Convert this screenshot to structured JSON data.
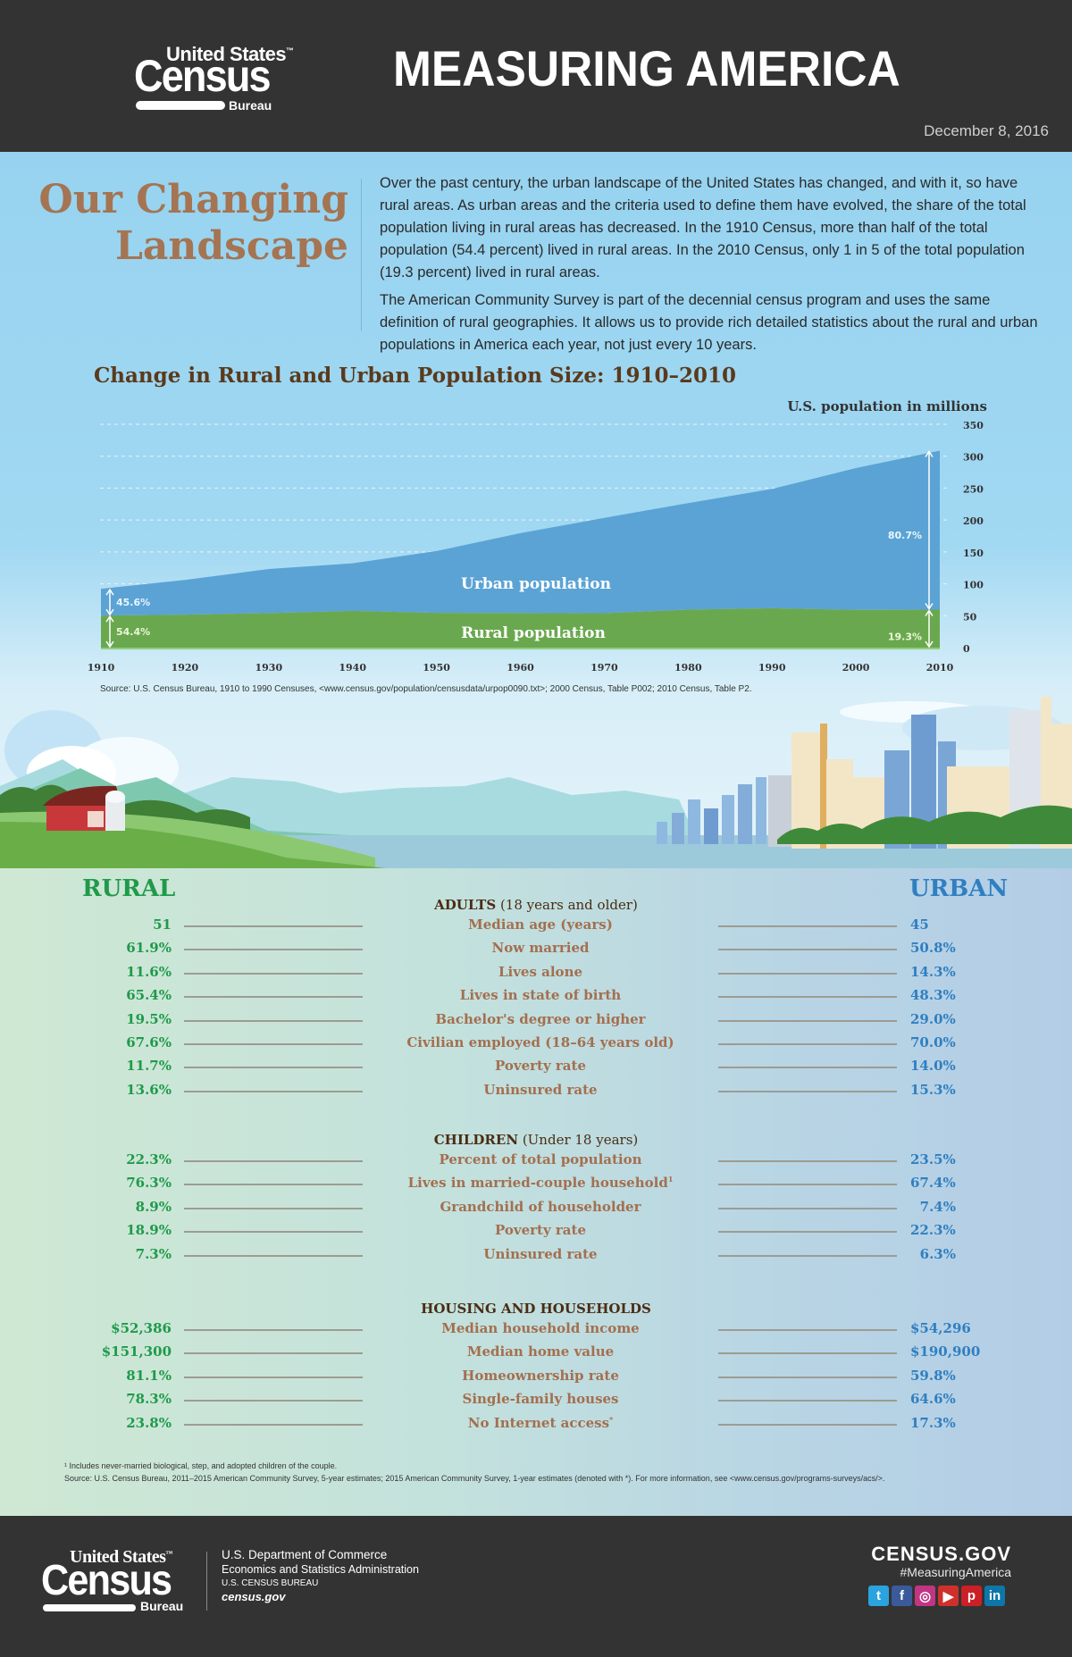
{
  "header": {
    "logo": {
      "line1": "United States",
      "line2": "Census",
      "line3": "Bureau",
      "tm": "™"
    },
    "title": "MEASURING AMERICA",
    "date": "December 8, 2016"
  },
  "intro": {
    "title_line1": "Our Changing",
    "title_line2": "Landscape",
    "paragraph1": "Over the past century, the urban landscape of the United States has changed, and with it, so have rural areas. As urban areas and the criteria used to define them have evolved, the share of the total population living in rural areas has decreased. In the 1910 Census, more than half of the total population (54.4 percent) lived in rural areas. In the 2010 Census, only 1 in 5 of the total population (19.3 percent) lived in rural areas.",
    "paragraph2": "The American Community Survey is part of the decennial census program and uses the same definition of rural geographies. It allows us to provide rich detailed statistics about the rural and urban populations in America each year, not just every 10 years."
  },
  "chart_data": {
    "type": "area",
    "title": "Change in Rural and Urban Population Size: 1910–2010",
    "ylabel": "U.S. population in millions",
    "xlabel": "",
    "x": [
      1910,
      1920,
      1930,
      1940,
      1950,
      1960,
      1970,
      1980,
      1990,
      2000,
      2010
    ],
    "xticks": [
      "1910",
      "1920",
      "1930",
      "1940",
      "1950",
      "1960",
      "1970",
      "1980",
      "1990",
      "2000",
      "2010"
    ],
    "yticks": [
      "0",
      "50",
      "100",
      "150",
      "200",
      "250",
      "300",
      "350"
    ],
    "ylim": [
      0,
      350
    ],
    "xlim": [
      1910,
      2010
    ],
    "stacked": true,
    "grid": true,
    "series": [
      {
        "name": "Rural population",
        "color": "#6aa84f",
        "values": [
          50.2,
          51.6,
          54.0,
          57.5,
          54.5,
          54.1,
          53.9,
          59.5,
          61.7,
          59.1,
          59.5
        ]
      },
      {
        "name": "Urban population",
        "color": "#5ba3d4",
        "values": [
          42.0,
          54.4,
          69.2,
          74.7,
          96.8,
          125.2,
          149.4,
          167.0,
          187.0,
          222.3,
          249.2
        ]
      }
    ],
    "annotations": [
      {
        "text": "45.6%",
        "series": "Urban population",
        "x": 1910
      },
      {
        "text": "54.4%",
        "series": "Rural population",
        "x": 1910
      },
      {
        "text": "80.7%",
        "series": "Urban population",
        "x": 2010
      },
      {
        "text": "19.3%",
        "series": "Rural population",
        "x": 2010
      }
    ],
    "source": "Source: U.S. Census Bureau, 1910 to 1990 Censuses, <www.census.gov/population/censusdata/urpop0090.txt>; 2000 Census, Table P002; 2010 Census, Table P2."
  },
  "comparison": {
    "rural_heading": "RURAL",
    "urban_heading": "URBAN",
    "groups": [
      {
        "title": "ADULTS",
        "subtitle": "(18 years and older)",
        "rows": [
          {
            "label": "Median age (years)",
            "rural": "51",
            "urban": "45"
          },
          {
            "label": "Now married",
            "rural": "61.9%",
            "urban": "50.8%"
          },
          {
            "label": "Lives alone",
            "rural": "11.6%",
            "urban": "14.3%"
          },
          {
            "label": "Lives in state of birth",
            "rural": "65.4%",
            "urban": "48.3%"
          },
          {
            "label": "Bachelor's degree or higher",
            "rural": "19.5%",
            "urban": "29.0%"
          },
          {
            "label": "Civilian employed (18–64 years old)",
            "rural": "67.6%",
            "urban": "70.0%"
          },
          {
            "label": "Poverty rate",
            "rural": "11.7%",
            "urban": "14.0%"
          },
          {
            "label": "Uninsured rate",
            "rural": "13.6%",
            "urban": "15.3%"
          }
        ]
      },
      {
        "title": "CHILDREN",
        "subtitle": "(Under 18 years)",
        "rows": [
          {
            "label": "Percent of total population",
            "rural": "22.3%",
            "urban": "23.5%"
          },
          {
            "label": "Lives in married-couple household",
            "sup": "1",
            "rural": "76.3%",
            "urban": "67.4%"
          },
          {
            "label": "Grandchild of householder",
            "rural": "8.9%",
            "urban": "7.4%"
          },
          {
            "label": "Poverty rate",
            "rural": "18.9%",
            "urban": "22.3%"
          },
          {
            "label": "Uninsured rate",
            "rural": "7.3%",
            "urban": "6.3%"
          }
        ]
      },
      {
        "title": "HOUSING AND HOUSEHOLDS",
        "subtitle": "",
        "rows": [
          {
            "label": "Median household income",
            "rural": "$52,386",
            "urban": "$54,296"
          },
          {
            "label": "Median home value",
            "rural": "$151,300",
            "urban": "$190,900"
          },
          {
            "label": "Homeownership rate",
            "rural": "81.1%",
            "urban": "59.8%"
          },
          {
            "label": "Single-family houses",
            "rural": "78.3%",
            "urban": "64.6%"
          },
          {
            "label": "No Internet access",
            "sup": "*",
            "rural": "23.8%",
            "urban": "17.3%"
          }
        ]
      }
    ],
    "footnote1": "¹ Includes never-married biological, step, and adopted children of the couple.",
    "footnote2": "Source: U.S. Census Bureau, 2011–2015 American Community Survey, 5-year estimates; 2015 American Community Survey, 1-year estimates (denoted with *). For more information, see <www.census.gov/programs-surveys/acs/>."
  },
  "footer": {
    "logo": {
      "line1": "United States",
      "line2": "Census",
      "line3": "Bureau",
      "tm": "™"
    },
    "dept_line1": "U.S. Department of Commerce",
    "dept_line2": "Economics and Statistics Administration",
    "dept_line3": "U.S. CENSUS BUREAU",
    "dept_line4": "census.gov",
    "site": "CENSUS.GOV",
    "hashtag": "#MeasuringAmerica",
    "social": [
      {
        "name": "twitter-icon",
        "glyph": "t",
        "color": "#2aa3df"
      },
      {
        "name": "facebook-icon",
        "glyph": "f",
        "color": "#3b5a9a"
      },
      {
        "name": "instagram-icon",
        "glyph": "◎",
        "color": "#c13584"
      },
      {
        "name": "youtube-icon",
        "glyph": "▶",
        "color": "#d0302b"
      },
      {
        "name": "pinterest-icon",
        "glyph": "p",
        "color": "#cb2027"
      },
      {
        "name": "linkedin-icon",
        "glyph": "in",
        "color": "#0e76a8"
      }
    ]
  }
}
